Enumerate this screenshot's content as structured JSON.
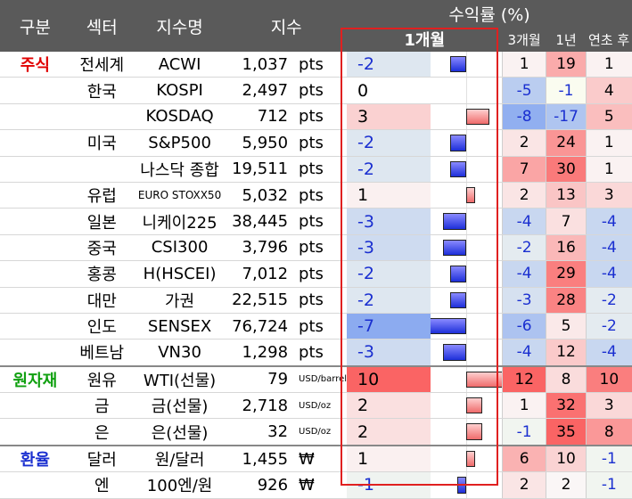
{
  "header": {
    "col_group": "구분",
    "col_sector": "섹터",
    "col_index": "지수명",
    "col_value": "지수",
    "returns": "수익률 (%)",
    "m1": "1개월",
    "m3": "3개월",
    "y1": "1년",
    "ytd": "연초 후"
  },
  "groups": {
    "stocks": "주식",
    "commodities": "원자재",
    "fx": "환율"
  },
  "colors": {
    "stocks": "#e00000",
    "commodities": "#10a010",
    "fx": "#1a2fd0",
    "neg_text": "#1a2fd0"
  },
  "rows": [
    {
      "sector": "전세계",
      "name": "ACWI",
      "value": "1,037",
      "unit": "pts",
      "m1": "-2",
      "m3": "1",
      "y1": "19",
      "ytd": "1"
    },
    {
      "sector": "한국",
      "name": "KOSPI",
      "value": "2,497",
      "unit": "pts",
      "m1": "0",
      "m3": "-5",
      "y1": "-1",
      "ytd": "4"
    },
    {
      "sector": "",
      "name": "KOSDAQ",
      "value": "712",
      "unit": "pts",
      "m1": "3",
      "m3": "-8",
      "y1": "-17",
      "ytd": "5"
    },
    {
      "sector": "미국",
      "name": "S&P500",
      "value": "5,950",
      "unit": "pts",
      "m1": "-2",
      "m3": "2",
      "y1": "24",
      "ytd": "1"
    },
    {
      "sector": "",
      "name": "나스닥 종합",
      "value": "19,511",
      "unit": "pts",
      "m1": "-2",
      "m3": "7",
      "y1": "30",
      "ytd": "1"
    },
    {
      "sector": "유럽",
      "name": "EURO STOXX50",
      "value": "5,032",
      "unit": "pts",
      "m1": "1",
      "m3": "2",
      "y1": "13",
      "ytd": "3"
    },
    {
      "sector": "일본",
      "name": "니케이225",
      "value": "38,445",
      "unit": "pts",
      "m1": "-3",
      "m3": "-4",
      "y1": "7",
      "ytd": "-4"
    },
    {
      "sector": "중국",
      "name": "CSI300",
      "value": "3,796",
      "unit": "pts",
      "m1": "-3",
      "m3": "-2",
      "y1": "16",
      "ytd": "-4"
    },
    {
      "sector": "홍콩",
      "name": "H(HSCEI)",
      "value": "7,012",
      "unit": "pts",
      "m1": "-2",
      "m3": "-4",
      "y1": "29",
      "ytd": "-4"
    },
    {
      "sector": "대만",
      "name": "가권",
      "value": "22,515",
      "unit": "pts",
      "m1": "-2",
      "m3": "-3",
      "y1": "28",
      "ytd": "-2"
    },
    {
      "sector": "인도",
      "name": "SENSEX",
      "value": "76,724",
      "unit": "pts",
      "m1": "-7",
      "m3": "-6",
      "y1": "5",
      "ytd": "-2"
    },
    {
      "sector": "베트남",
      "name": "VN30",
      "value": "1,298",
      "unit": "pts",
      "m1": "-3",
      "m3": "-4",
      "y1": "12",
      "ytd": "-4"
    },
    {
      "sector": "원유",
      "name": "WTI(선물)",
      "value": "79",
      "unit": "USD/barrel",
      "m1": "10",
      "m3": "12",
      "y1": "8",
      "ytd": "10"
    },
    {
      "sector": "금",
      "name": "금(선물)",
      "value": "2,718",
      "unit": "USD/oz",
      "m1": "2",
      "m3": "1",
      "y1": "32",
      "ytd": "3"
    },
    {
      "sector": "은",
      "name": "은(선물)",
      "value": "32",
      "unit": "USD/oz",
      "m1": "2",
      "m3": "-1",
      "y1": "35",
      "ytd": "8"
    },
    {
      "sector": "달러",
      "name": "원/달러",
      "value": "1,455",
      "unit": "₩",
      "m1": "1",
      "m3": "6",
      "y1": "10",
      "ytd": "-1"
    },
    {
      "sector": "엔",
      "name": "100엔/원",
      "value": "926",
      "unit": "₩",
      "m1": "-1",
      "m3": "2",
      "y1": "2",
      "ytd": "-1"
    }
  ],
  "row_group": [
    "stocks",
    "",
    "",
    "",
    "",
    "",
    "",
    "",
    "",
    "",
    "",
    "",
    "commodities",
    "",
    "",
    "fx",
    ""
  ]
}
